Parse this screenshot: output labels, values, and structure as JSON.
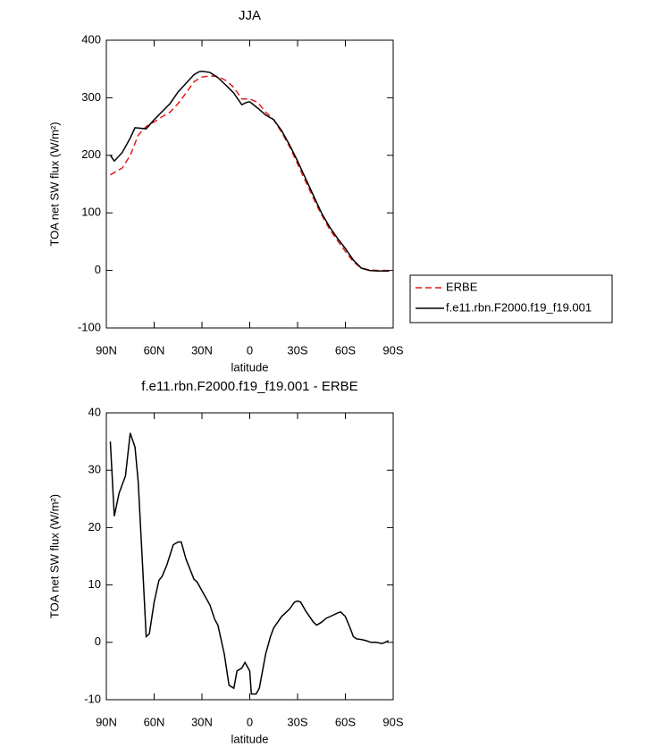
{
  "chart_data": [
    {
      "type": "line",
      "title": "JJA",
      "xlabel": "latitude",
      "ylabel": "TOA net SW flux (W/m²)",
      "xlim": [
        90,
        -90
      ],
      "xticks": [
        {
          "value": 90,
          "label": "90N"
        },
        {
          "value": 60,
          "label": "60N"
        },
        {
          "value": 30,
          "label": "30N"
        },
        0,
        {
          "value": -30,
          "label": "30S"
        },
        {
          "value": -60,
          "label": "60S"
        },
        {
          "value": -90,
          "label": "90S"
        }
      ],
      "ylim": [
        -100,
        400
      ],
      "yticks": [
        -100,
        0,
        100,
        200,
        300,
        400
      ],
      "legend": "outside-right",
      "series": [
        {
          "name": "ERBE",
          "color": "#e41a1c",
          "dashed": true,
          "x": [
            87.5,
            80,
            75,
            70,
            65,
            60,
            55,
            50,
            45,
            40,
            35,
            30,
            25,
            20,
            15,
            10,
            5,
            0,
            -5,
            -10,
            -15,
            -20,
            -25,
            -30,
            -35,
            -40,
            -45,
            -50,
            -55,
            -60,
            -65,
            -70,
            -75,
            -80,
            -85,
            -87.5
          ],
          "values": [
            166,
            178,
            200,
            235,
            250,
            258,
            267,
            275,
            290,
            308,
            328,
            336,
            338,
            337,
            330,
            318,
            298,
            298,
            292,
            275,
            262,
            240,
            215,
            185,
            155,
            125,
            97,
            72,
            52,
            33,
            15,
            4,
            1,
            0,
            0,
            0
          ]
        },
        {
          "name": "f.e11.rbn.F2000.f19_f19.001",
          "color": "#000000",
          "dashed": false,
          "x": [
            87.5,
            85,
            80,
            75,
            72,
            65,
            60,
            55,
            50,
            45,
            40,
            35,
            32,
            30,
            25,
            20,
            15,
            10,
            5,
            2,
            0,
            -5,
            -10,
            -15,
            -20,
            -25,
            -30,
            -35,
            -40,
            -45,
            -50,
            -55,
            -60,
            -65,
            -70,
            -75,
            -80,
            -85,
            -87.5
          ],
          "values": [
            200,
            190,
            205,
            230,
            248,
            246,
            262,
            276,
            290,
            310,
            325,
            340,
            345,
            346,
            344,
            335,
            322,
            308,
            288,
            292,
            293,
            282,
            270,
            262,
            243,
            218,
            190,
            160,
            130,
            100,
            76,
            56,
            38,
            18,
            4,
            0,
            -1,
            -1,
            -1
          ]
        }
      ]
    },
    {
      "type": "line",
      "title": "f.e11.rbn.F2000.f19_f19.001 - ERBE",
      "xlabel": "latitude",
      "ylabel": "TOA net SW flux (W/m²)",
      "xlim": [
        90,
        -90
      ],
      "xticks": [
        {
          "value": 90,
          "label": "90N"
        },
        {
          "value": 60,
          "label": "60N"
        },
        {
          "value": 30,
          "label": "30N"
        },
        0,
        {
          "value": -30,
          "label": "30S"
        },
        {
          "value": -60,
          "label": "60S"
        },
        {
          "value": -90,
          "label": "90S"
        }
      ],
      "ylim": [
        -10,
        40
      ],
      "yticks": [
        -10,
        0,
        10,
        20,
        30,
        40
      ],
      "color": "#000000",
      "x": [
        87.5,
        85,
        82,
        78,
        75,
        72,
        70,
        67,
        65,
        63,
        60,
        57,
        55,
        52,
        48,
        45,
        43,
        40,
        35,
        33,
        30,
        25,
        22,
        20,
        16,
        13,
        10,
        8,
        5,
        3,
        0,
        -1,
        -4,
        -6,
        -8,
        -10,
        -13,
        -15,
        -20,
        -25,
        -28,
        -30,
        -32,
        -35,
        -40,
        -42,
        -45,
        -48,
        -52,
        -55,
        -57,
        -60,
        -63,
        -65,
        -67,
        -70,
        -73,
        -76,
        -79,
        -83,
        -85,
        -87
      ],
      "values": [
        35,
        22,
        26,
        29,
        36.5,
        34,
        28,
        12,
        1,
        1.5,
        7,
        10.8,
        11.5,
        13.5,
        17,
        17.5,
        17.5,
        14.5,
        11,
        10.5,
        9,
        6.5,
        4,
        3,
        -2,
        -7.5,
        -8,
        -5,
        -4.5,
        -3.5,
        -5,
        -9,
        -9,
        -8,
        -5,
        -2,
        1,
        2.5,
        4.5,
        5.8,
        7,
        7.2,
        7,
        5.5,
        3.5,
        3,
        3.5,
        4.2,
        4.7,
        5.1,
        5.3,
        4.5,
        2.5,
        1,
        0.6,
        0.5,
        0.3,
        0,
        0,
        -0.2,
        0,
        0.3
      ]
    }
  ]
}
